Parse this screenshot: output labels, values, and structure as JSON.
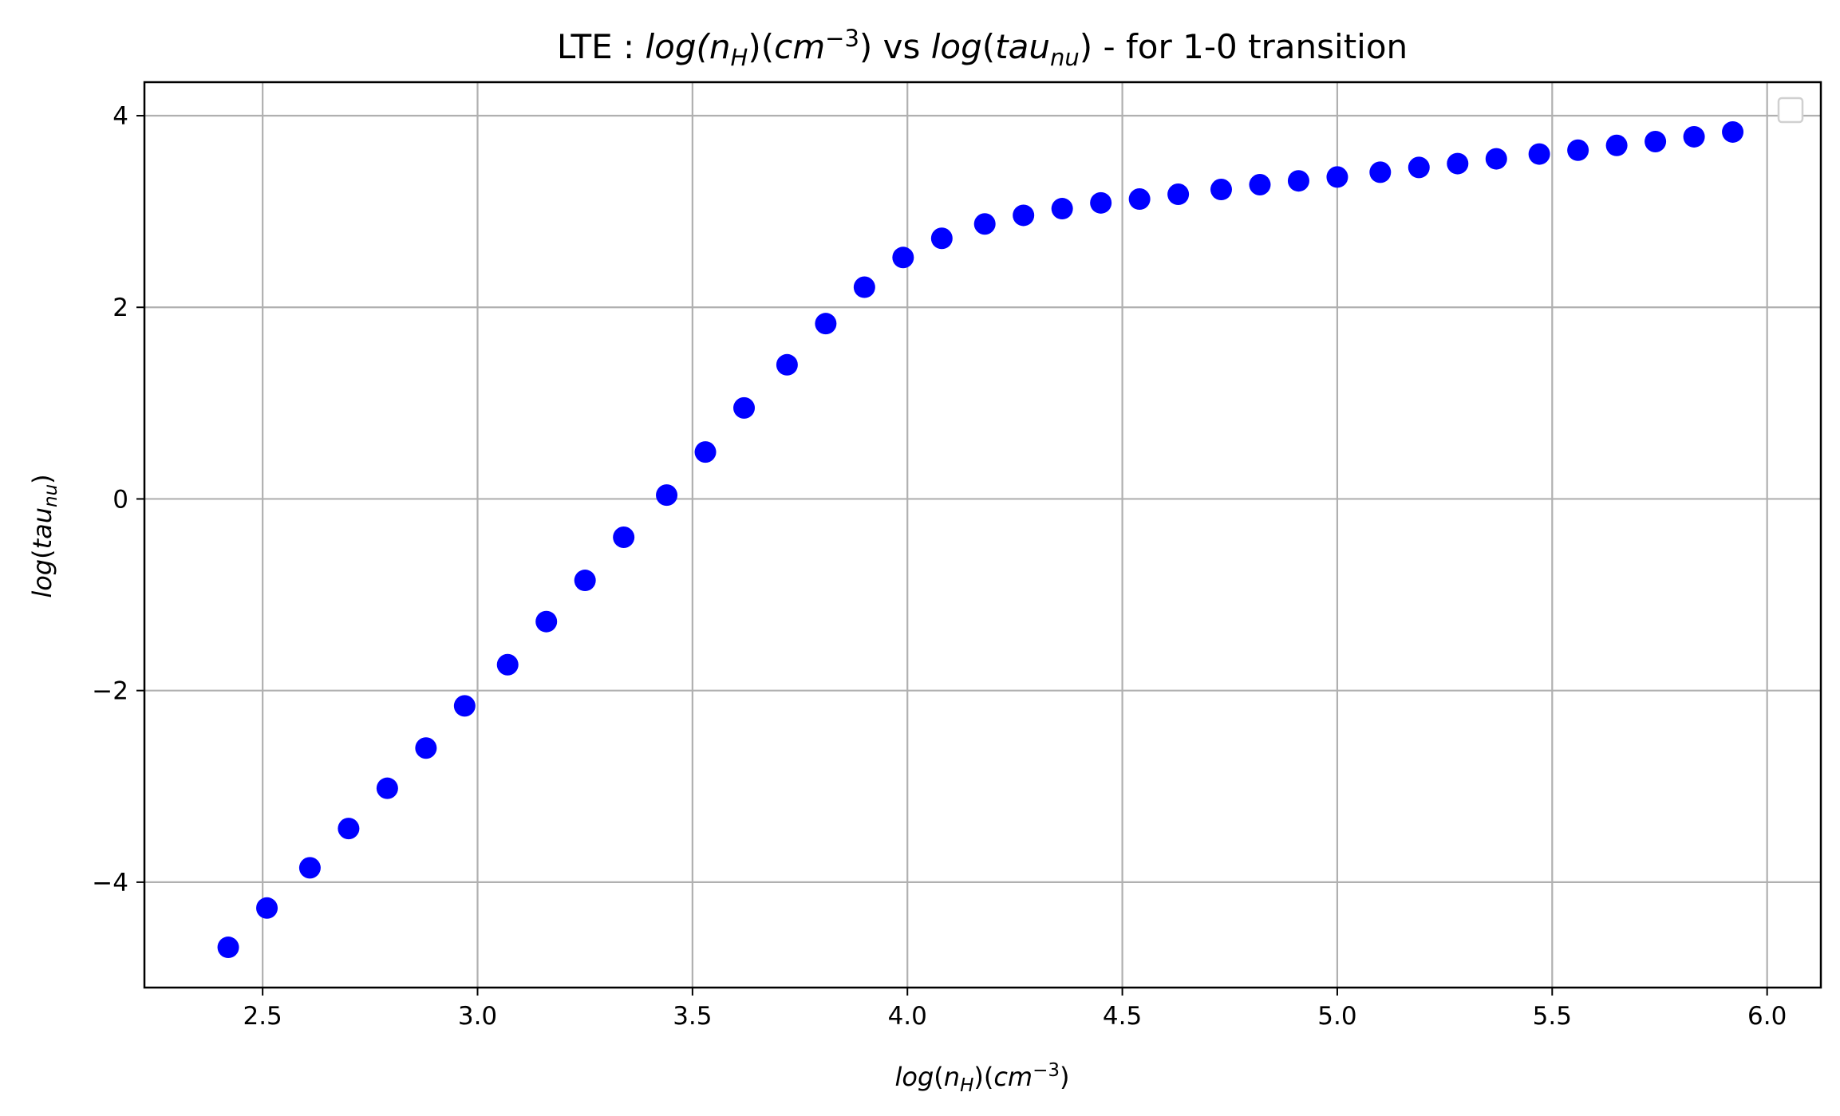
{
  "chart_data": {
    "type": "scatter",
    "title": {
      "prefix": "LTE : ",
      "x_quantity": "log",
      "x_paren_open": "(",
      "x_symbol": "n",
      "x_sub": "H",
      "x_paren_close": ")",
      "x_unit_open": "(",
      "x_unit": "cm",
      "x_unit_sup": "−3",
      "x_unit_close": ")",
      "middle": " vs ",
      "y_quantity": "log",
      "y_paren_open": "(",
      "y_symbol": "tau",
      "y_sub": "nu",
      "y_paren_close": ")",
      "suffix": " - for 1-0 transition"
    },
    "xlabel": {
      "quantity": "log",
      "paren_open": "(",
      "symbol": "n",
      "sub": "H",
      "paren_close": ")",
      "unit_open": "(",
      "unit": "cm",
      "unit_sup": "−3",
      "unit_close": ")"
    },
    "ylabel": {
      "quantity": "log",
      "paren_open": "(",
      "symbol": "tau",
      "sub": "nu",
      "paren_close": ")"
    },
    "xlim": [
      2.225,
      6.125
    ],
    "ylim": [
      -5.1,
      4.35
    ],
    "xticks": [
      2.5,
      3.0,
      3.5,
      4.0,
      4.5,
      5.0,
      5.5,
      6.0
    ],
    "xtick_labels": [
      "2.5",
      "3.0",
      "3.5",
      "4.0",
      "4.5",
      "5.0",
      "5.5",
      "6.0"
    ],
    "yticks": [
      -4,
      -2,
      0,
      2,
      4
    ],
    "ytick_labels": [
      "−4",
      "−2",
      "0",
      "2",
      "4"
    ],
    "grid": true,
    "legend": "top-right (empty)",
    "marker_color": "#0000ff",
    "series": [
      {
        "x": [
          2.42,
          2.51,
          2.61,
          2.7,
          2.79,
          2.88,
          2.97,
          3.07,
          3.16,
          3.25,
          3.34,
          3.44,
          3.53,
          3.62,
          3.72,
          3.81,
          3.9,
          3.99,
          4.08,
          4.18,
          4.27,
          4.36,
          4.45,
          4.54,
          4.63,
          4.73,
          4.82,
          4.91,
          5.0,
          5.1,
          5.19,
          5.28,
          5.37,
          5.47,
          5.56,
          5.65,
          5.74,
          5.83,
          5.92
        ],
        "y": [
          -4.68,
          -4.27,
          -3.85,
          -3.44,
          -3.02,
          -2.6,
          -2.16,
          -1.73,
          -1.28,
          -0.85,
          -0.4,
          0.04,
          0.49,
          0.95,
          1.4,
          1.83,
          2.21,
          2.52,
          2.72,
          2.87,
          2.96,
          3.03,
          3.09,
          3.13,
          3.18,
          3.23,
          3.28,
          3.32,
          3.36,
          3.41,
          3.46,
          3.5,
          3.55,
          3.6,
          3.64,
          3.69,
          3.73,
          3.78,
          3.83
        ]
      }
    ]
  }
}
